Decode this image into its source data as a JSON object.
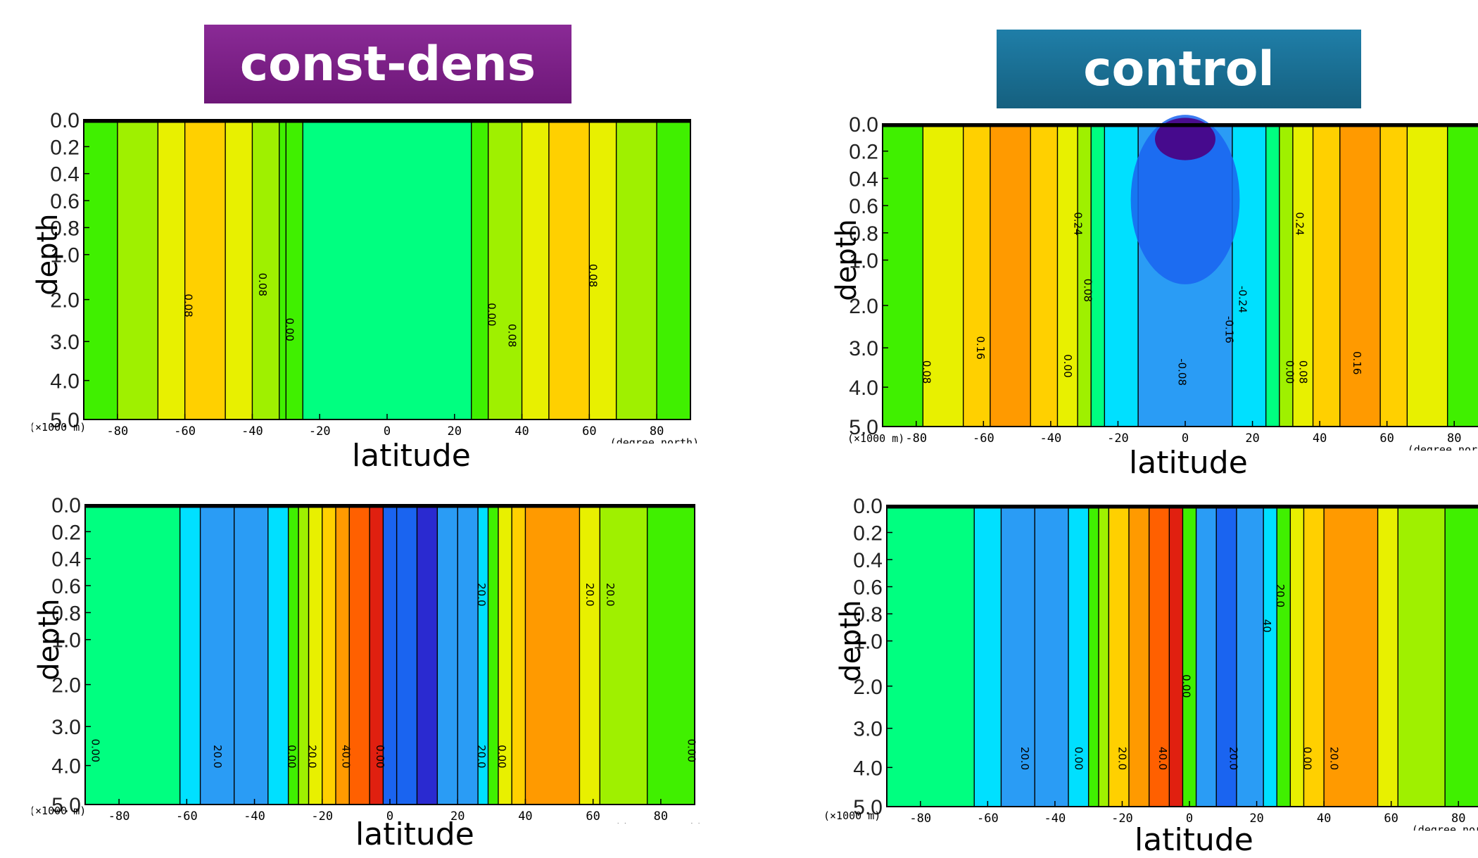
{
  "titles": {
    "left": "const-dens",
    "right": "control"
  },
  "colors": {
    "left_banner": "#7b1e86",
    "right_banner": "#1a6f96",
    "palette": [
      "#4b0082",
      "#2a2ad0",
      "#1a64f0",
      "#2a9cf5",
      "#00e0ff",
      "#00ff80",
      "#40f000",
      "#9ff000",
      "#e8f000",
      "#ffd000",
      "#ff9a00",
      "#ff6000",
      "#e02010"
    ]
  },
  "chart_data": [
    {
      "panel": "top-left",
      "type": "heatmap",
      "title": "const-dens",
      "xlabel": "latitude",
      "ylabel": "depth",
      "x_unit": "(degree_north)",
      "y_unit": "(×1000 m)",
      "xlim": [
        -90,
        90
      ],
      "x_ticks": [
        "-80",
        "-60",
        "-40",
        "-20",
        "0",
        "20",
        "40",
        "60",
        "80"
      ],
      "y_ticks": [
        "0.0",
        "0.2",
        "0.4",
        "0.6",
        "0.8",
        "1.0",
        "2.0",
        "3.0",
        "4.0",
        "5.0"
      ],
      "contour_labels": [
        "0.08",
        "0.08",
        "0.00",
        "0.00",
        "0.08",
        "0.08"
      ]
    },
    {
      "panel": "top-right",
      "type": "heatmap",
      "title": "control",
      "xlabel": "latitude",
      "ylabel": "depth",
      "x_unit": "(degree_north)",
      "y_unit": "(×1000 m)",
      "xlim": [
        -90,
        90
      ],
      "x_ticks": [
        "-80",
        "-60",
        "-40",
        "-20",
        "0",
        "20",
        "40",
        "60",
        "80"
      ],
      "y_ticks": [
        "0.0",
        "0.2",
        "0.4",
        "0.6",
        "0.8",
        "1.0",
        "2.0",
        "3.0",
        "4.0",
        "5.0"
      ],
      "contour_labels": [
        "0.24",
        "0.24",
        "0.08",
        "0.16",
        "0.00",
        "-0.24",
        "-0.16",
        "-0.08",
        "0.00",
        "0.08",
        "0.16",
        "0.08"
      ]
    },
    {
      "panel": "bottom-left",
      "type": "heatmap",
      "xlabel": "latitude",
      "ylabel": "depth",
      "x_unit": "(degree_north)",
      "y_unit": "(×1000 m)",
      "xlim": [
        -90,
        90
      ],
      "x_ticks": [
        "-80",
        "-60",
        "-40",
        "-20",
        "0",
        "20",
        "40",
        "60",
        "80"
      ],
      "y_ticks": [
        "0.0",
        "0.2",
        "0.4",
        "0.6",
        "0.8",
        "1.0",
        "2.0",
        "3.0",
        "4.0",
        "5.0"
      ],
      "contour_labels": [
        "0.00",
        "20.0",
        "0.00",
        "20.0",
        "40.0",
        "0.00",
        "20.0",
        "0.00",
        "20.0",
        "20.0",
        "20.0",
        "0.00"
      ]
    },
    {
      "panel": "bottom-right",
      "type": "heatmap",
      "xlabel": "latitude",
      "ylabel": "depth",
      "x_unit": "(degree_north)",
      "y_unit": "(×1000 m)",
      "xlim": [
        -90,
        90
      ],
      "x_ticks": [
        "-80",
        "-60",
        "-40",
        "-20",
        "0",
        "20",
        "40",
        "60",
        "80"
      ],
      "y_ticks": [
        "0.0",
        "0.2",
        "0.4",
        "0.6",
        "0.8",
        "1.0",
        "2.0",
        "3.0",
        "4.0",
        "5.0"
      ],
      "contour_labels": [
        "20.0",
        "0.00",
        "20.0",
        "40.0",
        "0.00",
        "20.0",
        "0.00",
        "20.0",
        "40",
        "20.0"
      ]
    }
  ]
}
